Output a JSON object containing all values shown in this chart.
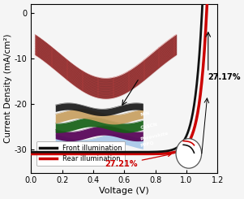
{
  "title": "",
  "xlabel": "Voltage (V)",
  "ylabel": "Current Density (mA/cm²)",
  "xlim": [
    0.0,
    1.2
  ],
  "ylim": [
    -35,
    2
  ],
  "front_color": "#111111",
  "rear_color": "#cc0000",
  "legend_front": "Front illumination",
  "legend_rear": "Rear illumination",
  "annotation_rear_pce": "27.17%",
  "annotation_front_pce": "27.21%",
  "bg_color": "#f5f5f5",
  "Jsc_front": -30.5,
  "Voc_front": 1.1,
  "Jsc_rear": -30.9,
  "Voc_rear": 1.13,
  "n_ideality": 1.8,
  "mesh_color": "#5a0000",
  "surface_color": "#7a0000",
  "surface_color2": "#3a0000"
}
